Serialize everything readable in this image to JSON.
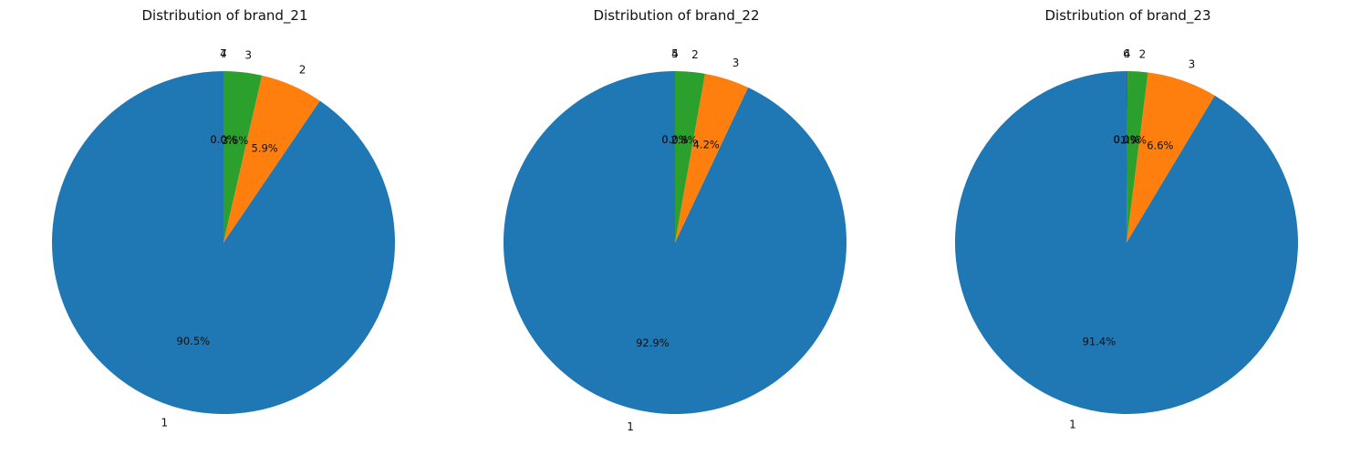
{
  "chart_data": [
    {
      "type": "pie",
      "title": "Distribution of brand_21",
      "labels": [
        "1",
        "2",
        "3",
        "4",
        "7"
      ],
      "values": [
        90.5,
        5.9,
        3.6,
        0.0,
        0.0
      ],
      "pct_labels": [
        "90.5%",
        "5.9%",
        "3.6%",
        "0.0%",
        "0.0%"
      ],
      "colors": [
        "#1f77b4",
        "#ff7f0e",
        "#2ca02c",
        "#d62728",
        "#9467bd"
      ]
    },
    {
      "type": "pie",
      "title": "Distribution of brand_22",
      "labels": [
        "1",
        "3",
        "2",
        "5",
        "4"
      ],
      "values": [
        92.9,
        4.2,
        2.8,
        0.0,
        0.0
      ],
      "pct_labels": [
        "92.9%",
        "4.2%",
        "2.8%",
        "0.0%",
        "0.0%"
      ],
      "colors": [
        "#1f77b4",
        "#ff7f0e",
        "#2ca02c",
        "#d62728",
        "#9467bd"
      ]
    },
    {
      "type": "pie",
      "title": "Distribution of brand_23",
      "labels": [
        "1",
        "3",
        "2",
        "4",
        "6"
      ],
      "values": [
        91.4,
        6.6,
        1.9,
        0.1,
        0.0
      ],
      "pct_labels": [
        "91.4%",
        "6.6%",
        "1.9%",
        "0.1%",
        "0.0%"
      ],
      "colors": [
        "#1f77b4",
        "#ff7f0e",
        "#2ca02c",
        "#d62728",
        "#9467bd"
      ]
    }
  ]
}
